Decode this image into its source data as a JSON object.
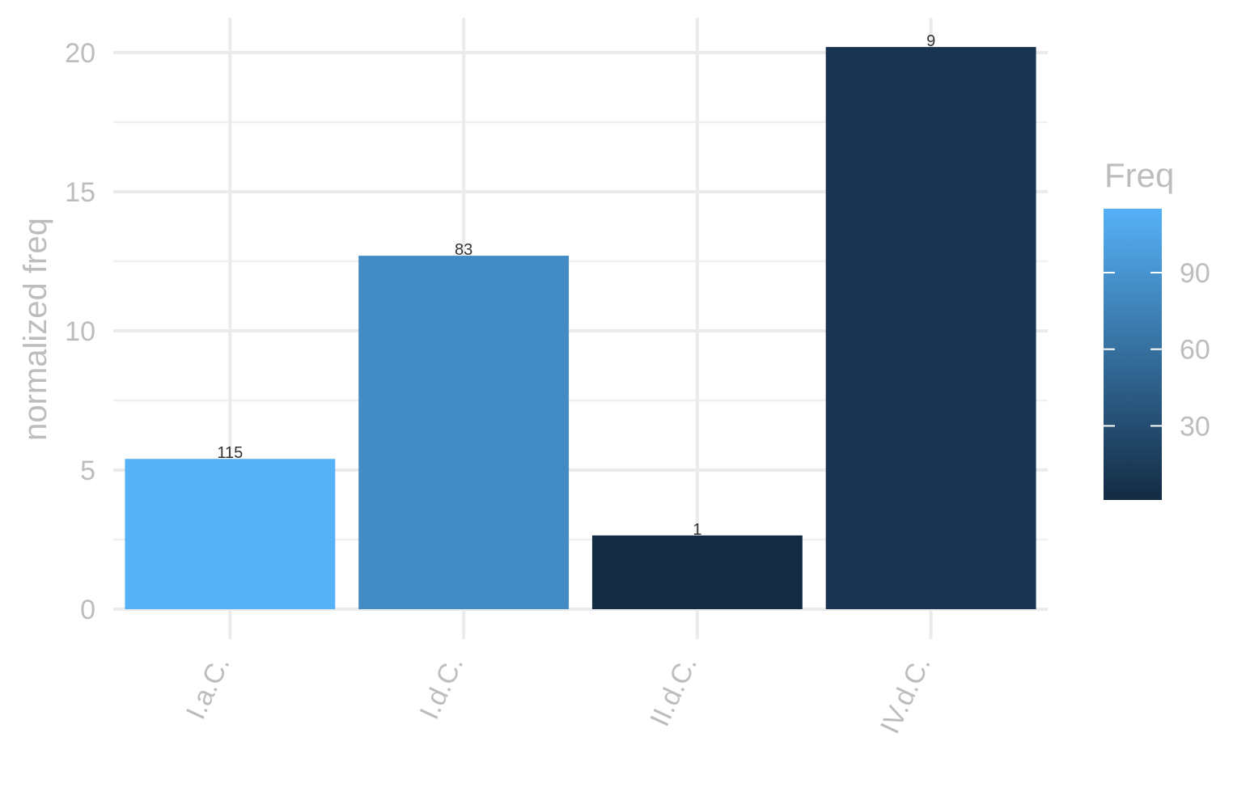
{
  "chart_data": {
    "type": "bar",
    "categories": [
      "I.a.C.",
      "I.d.C.",
      "II.d.C.",
      "IV.d.C."
    ],
    "values": [
      5.4,
      12.7,
      2.65,
      20.2
    ],
    "labels": [
      "115",
      "83",
      "1",
      "9"
    ],
    "freq": [
      115,
      83,
      1,
      9
    ],
    "title": "",
    "xlabel": "",
    "ylabel": "normalized freq",
    "ylim": [
      0,
      21.2
    ],
    "yticks": [
      0,
      5,
      10,
      15,
      20
    ],
    "grid": true,
    "legend": {
      "title": "Freq",
      "placement": "right",
      "type": "colorbar",
      "ticks": [
        30,
        60,
        90
      ],
      "range": [
        1,
        115
      ],
      "color_low": "#132B43",
      "color_high": "#56B1F7"
    }
  }
}
